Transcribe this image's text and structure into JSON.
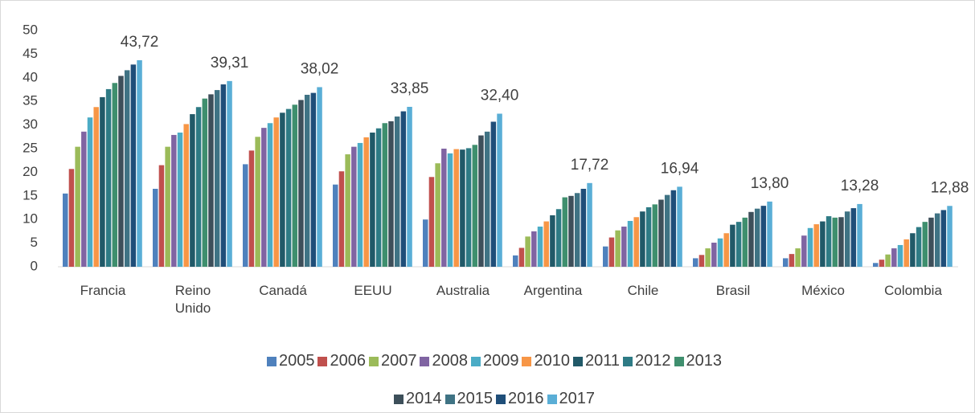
{
  "chart_data": {
    "type": "bar",
    "categories": [
      "Francia",
      "Reino Unido",
      "Canadá",
      "EEUU",
      "Australia",
      "Argentina",
      "Chile",
      "Brasil",
      "México",
      "Colombia"
    ],
    "series": [
      {
        "name": "2005",
        "color": "#4f81bd",
        "values": [
          15.5,
          16.5,
          21.7,
          17.4,
          10.0,
          2.4,
          4.3,
          1.8,
          1.8,
          0.8
        ]
      },
      {
        "name": "2006",
        "color": "#c0504d",
        "values": [
          20.7,
          21.5,
          24.6,
          20.2,
          19.0,
          4.0,
          6.2,
          2.5,
          2.7,
          1.5
        ]
      },
      {
        "name": "2007",
        "color": "#9bbb59",
        "values": [
          25.4,
          25.4,
          27.5,
          23.8,
          21.9,
          6.4,
          7.7,
          3.9,
          3.9,
          2.6
        ]
      },
      {
        "name": "2008",
        "color": "#8064a2",
        "values": [
          28.6,
          27.9,
          29.4,
          25.4,
          25.0,
          7.5,
          8.5,
          5.1,
          6.6,
          3.9
        ]
      },
      {
        "name": "2009",
        "color": "#4bacc6",
        "values": [
          31.6,
          28.4,
          30.4,
          26.2,
          24.0,
          8.5,
          9.7,
          6.0,
          8.2,
          4.6
        ]
      },
      {
        "name": "2010",
        "color": "#f79646",
        "values": [
          33.8,
          30.2,
          31.6,
          27.4,
          24.9,
          9.6,
          10.5,
          7.1,
          9.0,
          5.8
        ]
      },
      {
        "name": "2011",
        "color": "#215968",
        "values": [
          35.9,
          32.3,
          32.6,
          28.4,
          24.8,
          10.9,
          11.7,
          8.9,
          9.6,
          7.1
        ]
      },
      {
        "name": "2012",
        "color": "#2e7b85",
        "values": [
          37.6,
          33.8,
          33.4,
          29.3,
          25.1,
          12.2,
          12.6,
          9.5,
          10.7,
          8.4
        ]
      },
      {
        "name": "2013",
        "color": "#3f8f6e",
        "values": [
          38.9,
          35.6,
          34.3,
          30.4,
          25.8,
          14.7,
          13.2,
          10.4,
          10.4,
          9.5
        ]
      },
      {
        "name": "2014",
        "color": "#3d4f5a",
        "values": [
          40.4,
          36.5,
          35.3,
          30.8,
          27.8,
          15.0,
          14.2,
          11.6,
          10.5,
          10.4
        ]
      },
      {
        "name": "2015",
        "color": "#3f7384",
        "values": [
          41.6,
          37.4,
          36.4,
          31.8,
          28.6,
          15.6,
          15.2,
          12.3,
          11.7,
          11.3
        ]
      },
      {
        "name": "2016",
        "color": "#1f4e79",
        "values": [
          42.8,
          38.6,
          36.8,
          32.9,
          30.7,
          16.5,
          16.2,
          12.9,
          12.4,
          12.0
        ]
      },
      {
        "name": "2017",
        "color": "#5aaed6",
        "values": [
          43.72,
          39.31,
          38.02,
          33.85,
          32.4,
          17.72,
          16.94,
          13.8,
          13.28,
          12.88
        ],
        "value_labels": [
          "43,72",
          "39,31",
          "38,02",
          "33,85",
          "32,40",
          "17,72",
          "16,94",
          "13,80",
          "13,28",
          "12,88"
        ]
      }
    ],
    "ylim": [
      0,
      50
    ],
    "yticks": [
      0,
      5,
      10,
      15,
      20,
      25,
      30,
      35,
      40,
      45,
      50
    ],
    "grid": false,
    "legend": "bottom"
  }
}
